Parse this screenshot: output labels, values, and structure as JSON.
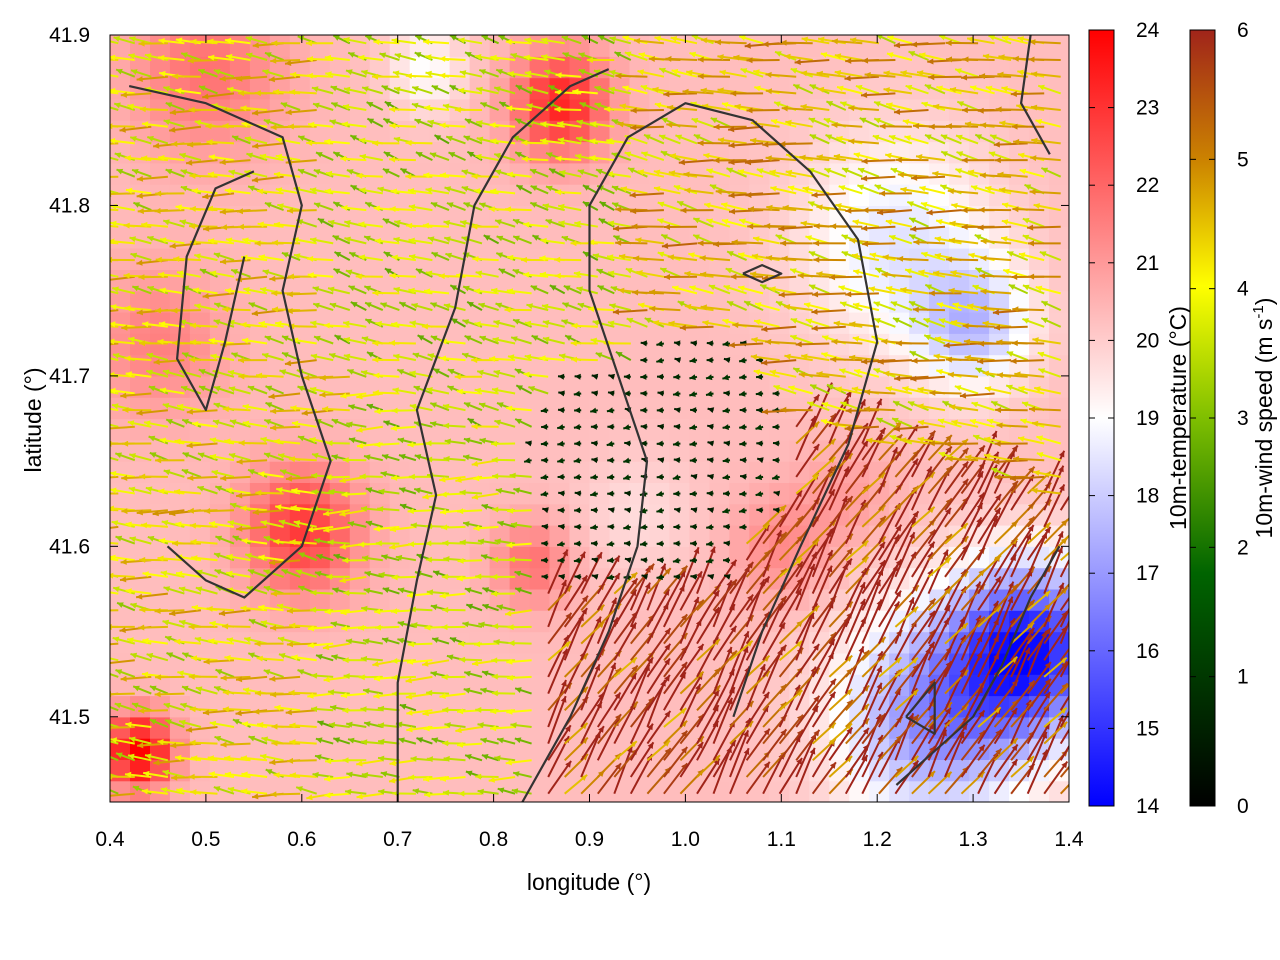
{
  "chart_data": {
    "type": "heatmap",
    "title": "",
    "xlabel": "longitude (°)",
    "ylabel": "latitude (°)",
    "xlim": [
      0.4,
      1.4
    ],
    "ylim": [
      41.45,
      41.9
    ],
    "xticks": [
      "0.4",
      "0.5",
      "0.6",
      "0.7",
      "0.8",
      "0.9",
      "1.0",
      "1.1",
      "1.2",
      "1.3",
      "1.4"
    ],
    "yticks": [
      "41.5",
      "41.6",
      "41.7",
      "41.8",
      "41.9"
    ],
    "grid": false,
    "temperature_colorbar": {
      "label": "10m-temperature (°C)",
      "range": [
        14,
        24
      ],
      "ticks": [
        "14",
        "15",
        "16",
        "17",
        "18",
        "19",
        "20",
        "21",
        "22",
        "23",
        "24"
      ],
      "colors": [
        "#0000ff",
        "#ffffff",
        "#ff0000"
      ]
    },
    "wind_colorbar": {
      "label_main": "10m-wind speed (m s",
      "label_sup": "-1",
      "label_end": ")",
      "range": [
        0,
        6
      ],
      "ticks": [
        "0",
        "1",
        "2",
        "3",
        "4",
        "5",
        "6"
      ],
      "colors": [
        "#000000",
        "#006400",
        "#7fbf00",
        "#ffff00",
        "#cc8400",
        "#a0241a"
      ]
    },
    "temperature_field": {
      "base": 20.3,
      "anomalies": [
        {
          "lon": 0.43,
          "lat": 41.48,
          "amp": 4.0,
          "r": 0.035
        },
        {
          "lon": 0.6,
          "lat": 41.61,
          "amp": 2.6,
          "r": 0.06
        },
        {
          "lon": 0.87,
          "lat": 41.86,
          "amp": 3.0,
          "r": 0.05
        },
        {
          "lon": 0.5,
          "lat": 41.88,
          "amp": 1.5,
          "r": 0.08
        },
        {
          "lon": 0.45,
          "lat": 41.72,
          "amp": 1.2,
          "r": 0.07
        },
        {
          "lon": 0.84,
          "lat": 41.59,
          "amp": 1.5,
          "r": 0.04
        },
        {
          "lon": 1.1,
          "lat": 41.6,
          "amp": 1.0,
          "r": 0.05
        },
        {
          "lon": 1.22,
          "lat": 41.78,
          "amp": -1.8,
          "r": 0.1
        },
        {
          "lon": 1.36,
          "lat": 41.54,
          "amp": -5.5,
          "r": 0.08
        },
        {
          "lon": 1.26,
          "lat": 41.5,
          "amp": -3.5,
          "r": 0.1
        },
        {
          "lon": 1.3,
          "lat": 41.73,
          "amp": -2.4,
          "r": 0.06
        },
        {
          "lon": 0.73,
          "lat": 41.88,
          "amp": -1.3,
          "r": 0.04
        },
        {
          "lon": 1.17,
          "lat": 41.63,
          "amp": 0.6,
          "r": 0.05
        },
        {
          "lon": 0.95,
          "lat": 41.62,
          "amp": -0.6,
          "r": 0.06
        }
      ]
    },
    "wind_field": {
      "regions": [
        {
          "name": "west",
          "lon": [
            0.4,
            0.62
          ],
          "lat": [
            41.45,
            41.9
          ],
          "direction_deg": 172,
          "speed": 3.6
        },
        {
          "name": "central-south",
          "lon": [
            0.62,
            0.85
          ],
          "lat": [
            41.45,
            41.65
          ],
          "direction_deg": 175,
          "speed": 3.0
        },
        {
          "name": "central-north",
          "lon": [
            0.62,
            0.95
          ],
          "lat": [
            41.7,
            41.9
          ],
          "direction_deg": 165,
          "speed": 3.0
        },
        {
          "name": "north-east",
          "lon": [
            0.95,
            1.4
          ],
          "lat": [
            41.72,
            41.9
          ],
          "direction_deg": 170,
          "speed": 4.0
        },
        {
          "name": "calm-center",
          "lon": [
            0.85,
            1.1
          ],
          "lat": [
            41.58,
            41.68
          ],
          "direction_deg": 180,
          "speed": 0.5
        },
        {
          "name": "south-east-outflow",
          "lon": [
            0.85,
            1.4
          ],
          "lat": [
            41.45,
            41.62
          ],
          "direction_deg": 55,
          "speed": 6.0
        }
      ]
    },
    "contours": [
      {
        "name": "contour-a",
        "points": [
          [
            0.42,
            41.87
          ],
          [
            0.5,
            41.86
          ],
          [
            0.58,
            41.84
          ],
          [
            0.6,
            41.8
          ],
          [
            0.58,
            41.75
          ],
          [
            0.6,
            41.7
          ],
          [
            0.63,
            41.65
          ],
          [
            0.6,
            41.6
          ],
          [
            0.54,
            41.57
          ],
          [
            0.5,
            41.58
          ],
          [
            0.46,
            41.6
          ]
        ]
      },
      {
        "name": "contour-b",
        "points": [
          [
            0.54,
            41.77
          ],
          [
            0.52,
            41.72
          ],
          [
            0.5,
            41.68
          ],
          [
            0.47,
            41.71
          ],
          [
            0.48,
            41.77
          ],
          [
            0.51,
            41.81
          ],
          [
            0.55,
            41.82
          ]
        ]
      },
      {
        "name": "contour-c",
        "points": [
          [
            0.7,
            41.45
          ],
          [
            0.7,
            41.52
          ],
          [
            0.72,
            41.58
          ],
          [
            0.74,
            41.63
          ],
          [
            0.72,
            41.68
          ],
          [
            0.76,
            41.74
          ],
          [
            0.78,
            41.8
          ],
          [
            0.82,
            41.84
          ],
          [
            0.88,
            41.87
          ],
          [
            0.92,
            41.88
          ]
        ]
      },
      {
        "name": "contour-d",
        "points": [
          [
            0.83,
            41.45
          ],
          [
            0.88,
            41.5
          ],
          [
            0.92,
            41.55
          ],
          [
            0.95,
            41.6
          ],
          [
            0.96,
            41.65
          ],
          [
            0.93,
            41.7
          ],
          [
            0.9,
            41.75
          ],
          [
            0.9,
            41.8
          ],
          [
            0.94,
            41.84
          ],
          [
            1.0,
            41.86
          ],
          [
            1.07,
            41.85
          ],
          [
            1.13,
            41.82
          ],
          [
            1.18,
            41.78
          ],
          [
            1.2,
            41.72
          ],
          [
            1.17,
            41.66
          ],
          [
            1.12,
            41.6
          ],
          [
            1.08,
            41.55
          ],
          [
            1.05,
            41.5
          ]
        ]
      },
      {
        "name": "contour-e",
        "points": [
          [
            1.06,
            41.76
          ],
          [
            1.08,
            41.765
          ],
          [
            1.1,
            41.76
          ],
          [
            1.08,
            41.755
          ],
          [
            1.06,
            41.76
          ]
        ]
      },
      {
        "name": "contour-f",
        "points": [
          [
            1.22,
            41.46
          ],
          [
            1.26,
            41.48
          ],
          [
            1.3,
            41.5
          ],
          [
            1.33,
            41.53
          ],
          [
            1.36,
            41.57
          ],
          [
            1.39,
            41.6
          ]
        ]
      },
      {
        "name": "contour-g",
        "points": [
          [
            1.23,
            41.5
          ],
          [
            1.26,
            41.52
          ],
          [
            1.26,
            41.49
          ],
          [
            1.23,
            41.5
          ]
        ]
      },
      {
        "name": "contour-h",
        "points": [
          [
            1.36,
            41.9
          ],
          [
            1.35,
            41.86
          ],
          [
            1.38,
            41.83
          ]
        ]
      }
    ]
  }
}
